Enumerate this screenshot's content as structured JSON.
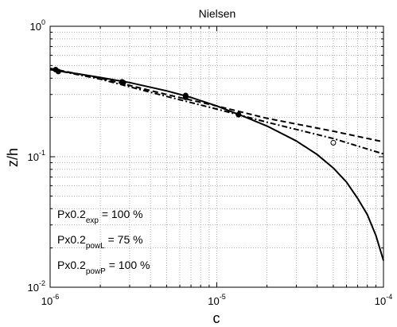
{
  "chart_data": {
    "type": "line",
    "title": "Nielsen",
    "xlabel": "c",
    "ylabel": "z/h",
    "xscale": "log",
    "yscale": "log",
    "xlim": [
      1e-06,
      0.0001
    ],
    "ylim": [
      0.01,
      1
    ],
    "grid": true,
    "x_tick_labels": [
      {
        "base": "10",
        "exp": "-6"
      },
      {
        "base": "10",
        "exp": "-5"
      },
      {
        "base": "10",
        "exp": "-4"
      }
    ],
    "y_tick_labels": [
      {
        "base": "10",
        "exp": "0"
      },
      {
        "base": "10",
        "exp": "-1"
      },
      {
        "base": "10",
        "exp": "-2"
      }
    ],
    "series": [
      {
        "style": "solid",
        "x": [
          1e-06,
          1.5e-06,
          2e-06,
          3e-06,
          5e-06,
          7e-06,
          1e-05,
          1.5e-05,
          2e-05,
          3e-05,
          4e-05,
          5e-05,
          6e-05,
          7e-05,
          8e-05,
          9e-05,
          0.0001
        ],
        "y": [
          0.465,
          0.43,
          0.405,
          0.37,
          0.32,
          0.285,
          0.245,
          0.2,
          0.172,
          0.132,
          0.104,
          0.082,
          0.064,
          0.048,
          0.036,
          0.025,
          0.016
        ]
      },
      {
        "style": "dashed",
        "x": [
          1e-06,
          2e-06,
          5e-06,
          1e-05,
          2e-05,
          5e-05,
          0.0001
        ],
        "y": [
          0.475,
          0.4,
          0.3,
          0.245,
          0.197,
          0.157,
          0.13
        ]
      },
      {
        "style": "dashdot",
        "x": [
          1e-06,
          2e-06,
          5e-06,
          1e-05,
          2e-05,
          5e-05,
          0.0001
        ],
        "y": [
          0.47,
          0.393,
          0.29,
          0.232,
          0.184,
          0.138,
          0.105
        ]
      }
    ],
    "measured_points": {
      "filled": {
        "x": [
          1.08e-06,
          1.12e-06,
          2.7e-06,
          2.75e-06,
          6.5e-06,
          6.5e-06,
          1.35e-05
        ],
        "y": [
          0.465,
          0.45,
          0.375,
          0.37,
          0.295,
          0.285,
          0.21
        ]
      },
      "open": {
        "x": [
          5e-05
        ],
        "y": [
          0.128
        ]
      }
    },
    "annotations": [
      {
        "main": "Px0.2",
        "sub": "exp",
        "rest": " = 100 %"
      },
      {
        "main": "Px0.2",
        "sub": "powL",
        "rest": " = 75 %"
      },
      {
        "main": "Px0.2",
        "sub": "powP",
        "rest": " = 100 %"
      }
    ]
  }
}
